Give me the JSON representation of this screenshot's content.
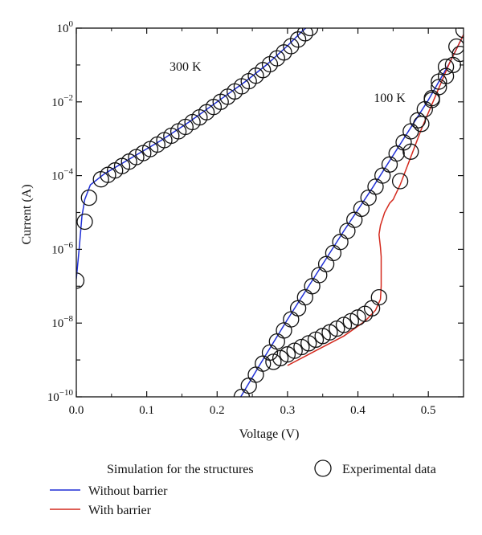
{
  "chart_data": {
    "type": "scatter",
    "xlabel": "Voltage (V)",
    "ylabel": "Current (A)",
    "xlim": [
      0.0,
      0.55
    ],
    "ylim_log10": [
      -10,
      0
    ],
    "y_scale": "log",
    "grid": false,
    "x_ticks": [
      {
        "value": 0.0,
        "label": "0.0"
      },
      {
        "value": 0.1,
        "label": "0.1"
      },
      {
        "value": 0.2,
        "label": "0.2"
      },
      {
        "value": 0.3,
        "label": "0.3"
      },
      {
        "value": 0.4,
        "label": "0.4"
      },
      {
        "value": 0.5,
        "label": "0.5"
      }
    ],
    "y_ticks": [
      {
        "exp": 0,
        "base": "10",
        "sup": "0"
      },
      {
        "exp": -2,
        "base": "10",
        "sup": "−2"
      },
      {
        "exp": -4,
        "base": "10",
        "sup": "−4"
      },
      {
        "exp": -6,
        "base": "10",
        "sup": "−6"
      },
      {
        "exp": -8,
        "base": "10",
        "sup": "−8"
      },
      {
        "exp": -10,
        "base": "10",
        "sup": "−10"
      }
    ],
    "annotations": [
      {
        "text": "300 K",
        "x": 0.155,
        "log10_y": -1.15
      },
      {
        "text": "100 K",
        "x": 0.445,
        "log10_y": -2.0
      }
    ],
    "legend": {
      "placement": "bottom",
      "title": "Simulation for the structures",
      "marker_label": "Experimental data"
    },
    "series": [
      {
        "name": "Without barrier",
        "kind": "line",
        "color": "#1f2fd6",
        "segments": [
          [
            [
              0.0,
              -6.8
            ],
            [
              0.004,
              -6.0
            ],
            [
              0.008,
              -5.1
            ],
            [
              0.012,
              -4.65
            ],
            [
              0.02,
              -4.25
            ],
            [
              0.04,
              -3.95
            ],
            [
              0.08,
              -3.5
            ],
            [
              0.12,
              -3.05
            ],
            [
              0.16,
              -2.55
            ],
            [
              0.2,
              -2.0
            ],
            [
              0.24,
              -1.45
            ],
            [
              0.27,
              -1.0
            ],
            [
              0.3,
              -0.48
            ],
            [
              0.32,
              -0.1
            ],
            [
              0.335,
              0.15
            ]
          ],
          [
            [
              0.232,
              -10.05
            ],
            [
              0.26,
              -9.15
            ],
            [
              0.3,
              -7.9
            ],
            [
              0.34,
              -6.7
            ],
            [
              0.38,
              -5.5
            ],
            [
              0.42,
              -4.35
            ],
            [
              0.46,
              -3.15
            ],
            [
              0.5,
              -1.95
            ],
            [
              0.53,
              -0.95
            ],
            [
              0.552,
              -0.1
            ]
          ]
        ]
      },
      {
        "name": "With barrier",
        "kind": "line",
        "color": "#d42a1e",
        "segments": [
          [
            [
              0.3,
              -9.15
            ],
            [
              0.34,
              -8.75
            ],
            [
              0.38,
              -8.35
            ],
            [
              0.41,
              -7.95
            ],
            [
              0.425,
              -7.65
            ],
            [
              0.432,
              -7.35
            ],
            [
              0.433,
              -7.0
            ],
            [
              0.433,
              -6.2
            ],
            [
              0.432,
              -5.95
            ],
            [
              0.43,
              -5.6
            ],
            [
              0.432,
              -5.35
            ],
            [
              0.438,
              -5.0
            ],
            [
              0.445,
              -4.75
            ],
            [
              0.45,
              -4.65
            ],
            [
              0.455,
              -4.45
            ],
            [
              0.46,
              -4.25
            ],
            [
              0.47,
              -3.75
            ],
            [
              0.49,
              -2.75
            ],
            [
              0.51,
              -1.85
            ],
            [
              0.53,
              -0.95
            ],
            [
              0.552,
              -0.1
            ]
          ]
        ]
      },
      {
        "name": "Experimental data",
        "kind": "scatter",
        "marker": "open-circle",
        "groups": [
          {
            "label": "300 K",
            "points": [
              [
                0.0,
                -6.85
              ],
              [
                0.012,
                -5.25
              ],
              [
                0.018,
                -4.6
              ],
              [
                0.035,
                -4.1
              ],
              [
                0.045,
                -3.98
              ],
              [
                0.055,
                -3.86
              ],
              [
                0.065,
                -3.74
              ],
              [
                0.075,
                -3.62
              ],
              [
                0.085,
                -3.5
              ],
              [
                0.095,
                -3.39
              ],
              [
                0.105,
                -3.28
              ],
              [
                0.115,
                -3.16
              ],
              [
                0.125,
                -3.04
              ],
              [
                0.135,
                -2.92
              ],
              [
                0.145,
                -2.8
              ],
              [
                0.155,
                -2.68
              ],
              [
                0.165,
                -2.55
              ],
              [
                0.175,
                -2.42
              ],
              [
                0.185,
                -2.28
              ],
              [
                0.195,
                -2.14
              ],
              [
                0.205,
                -2.0
              ],
              [
                0.215,
                -1.86
              ],
              [
                0.225,
                -1.72
              ],
              [
                0.235,
                -1.58
              ],
              [
                0.245,
                -1.44
              ],
              [
                0.255,
                -1.29
              ],
              [
                0.265,
                -1.14
              ],
              [
                0.275,
                -0.98
              ],
              [
                0.285,
                -0.82
              ],
              [
                0.295,
                -0.66
              ],
              [
                0.305,
                -0.49
              ],
              [
                0.315,
                -0.31
              ],
              [
                0.325,
                -0.14
              ],
              [
                0.332,
                0.0
              ]
            ]
          },
          {
            "label": "100 K without barrier",
            "points": [
              [
                0.235,
                -10.0
              ],
              [
                0.245,
                -9.7
              ],
              [
                0.255,
                -9.4
              ],
              [
                0.265,
                -9.1
              ],
              [
                0.275,
                -8.8
              ],
              [
                0.285,
                -8.5
              ],
              [
                0.295,
                -8.2
              ],
              [
                0.305,
                -7.9
              ],
              [
                0.315,
                -7.6
              ],
              [
                0.325,
                -7.3
              ],
              [
                0.335,
                -7.0
              ],
              [
                0.345,
                -6.7
              ],
              [
                0.355,
                -6.4
              ],
              [
                0.365,
                -6.1
              ],
              [
                0.375,
                -5.8
              ],
              [
                0.385,
                -5.5
              ],
              [
                0.395,
                -5.2
              ],
              [
                0.405,
                -4.9
              ],
              [
                0.415,
                -4.6
              ],
              [
                0.425,
                -4.3
              ],
              [
                0.435,
                -4.0
              ],
              [
                0.445,
                -3.7
              ],
              [
                0.455,
                -3.4
              ],
              [
                0.465,
                -3.1
              ],
              [
                0.475,
                -2.8
              ],
              [
                0.485,
                -2.5
              ],
              [
                0.495,
                -2.2
              ],
              [
                0.505,
                -1.9
              ],
              [
                0.515,
                -1.6
              ],
              [
                0.525,
                -1.3
              ],
              [
                0.535,
                -1.0
              ],
              [
                0.545,
                -0.7
              ]
            ]
          },
          {
            "label": "100 K with barrier",
            "points": [
              [
                0.28,
                -9.05
              ],
              [
                0.29,
                -8.95
              ],
              [
                0.3,
                -8.85
              ],
              [
                0.31,
                -8.75
              ],
              [
                0.32,
                -8.65
              ],
              [
                0.33,
                -8.55
              ],
              [
                0.34,
                -8.45
              ],
              [
                0.35,
                -8.35
              ],
              [
                0.36,
                -8.25
              ],
              [
                0.37,
                -8.15
              ],
              [
                0.38,
                -8.05
              ],
              [
                0.39,
                -7.95
              ],
              [
                0.4,
                -7.85
              ],
              [
                0.41,
                -7.75
              ],
              [
                0.42,
                -7.6
              ],
              [
                0.43,
                -7.3
              ],
              [
                0.46,
                -4.15
              ],
              [
                0.475,
                -3.35
              ],
              [
                0.49,
                -2.6
              ],
              [
                0.505,
                -1.95
              ],
              [
                0.515,
                -1.45
              ],
              [
                0.525,
                -1.05
              ],
              [
                0.54,
                -0.5
              ],
              [
                0.55,
                -0.05
              ]
            ]
          }
        ]
      }
    ]
  }
}
